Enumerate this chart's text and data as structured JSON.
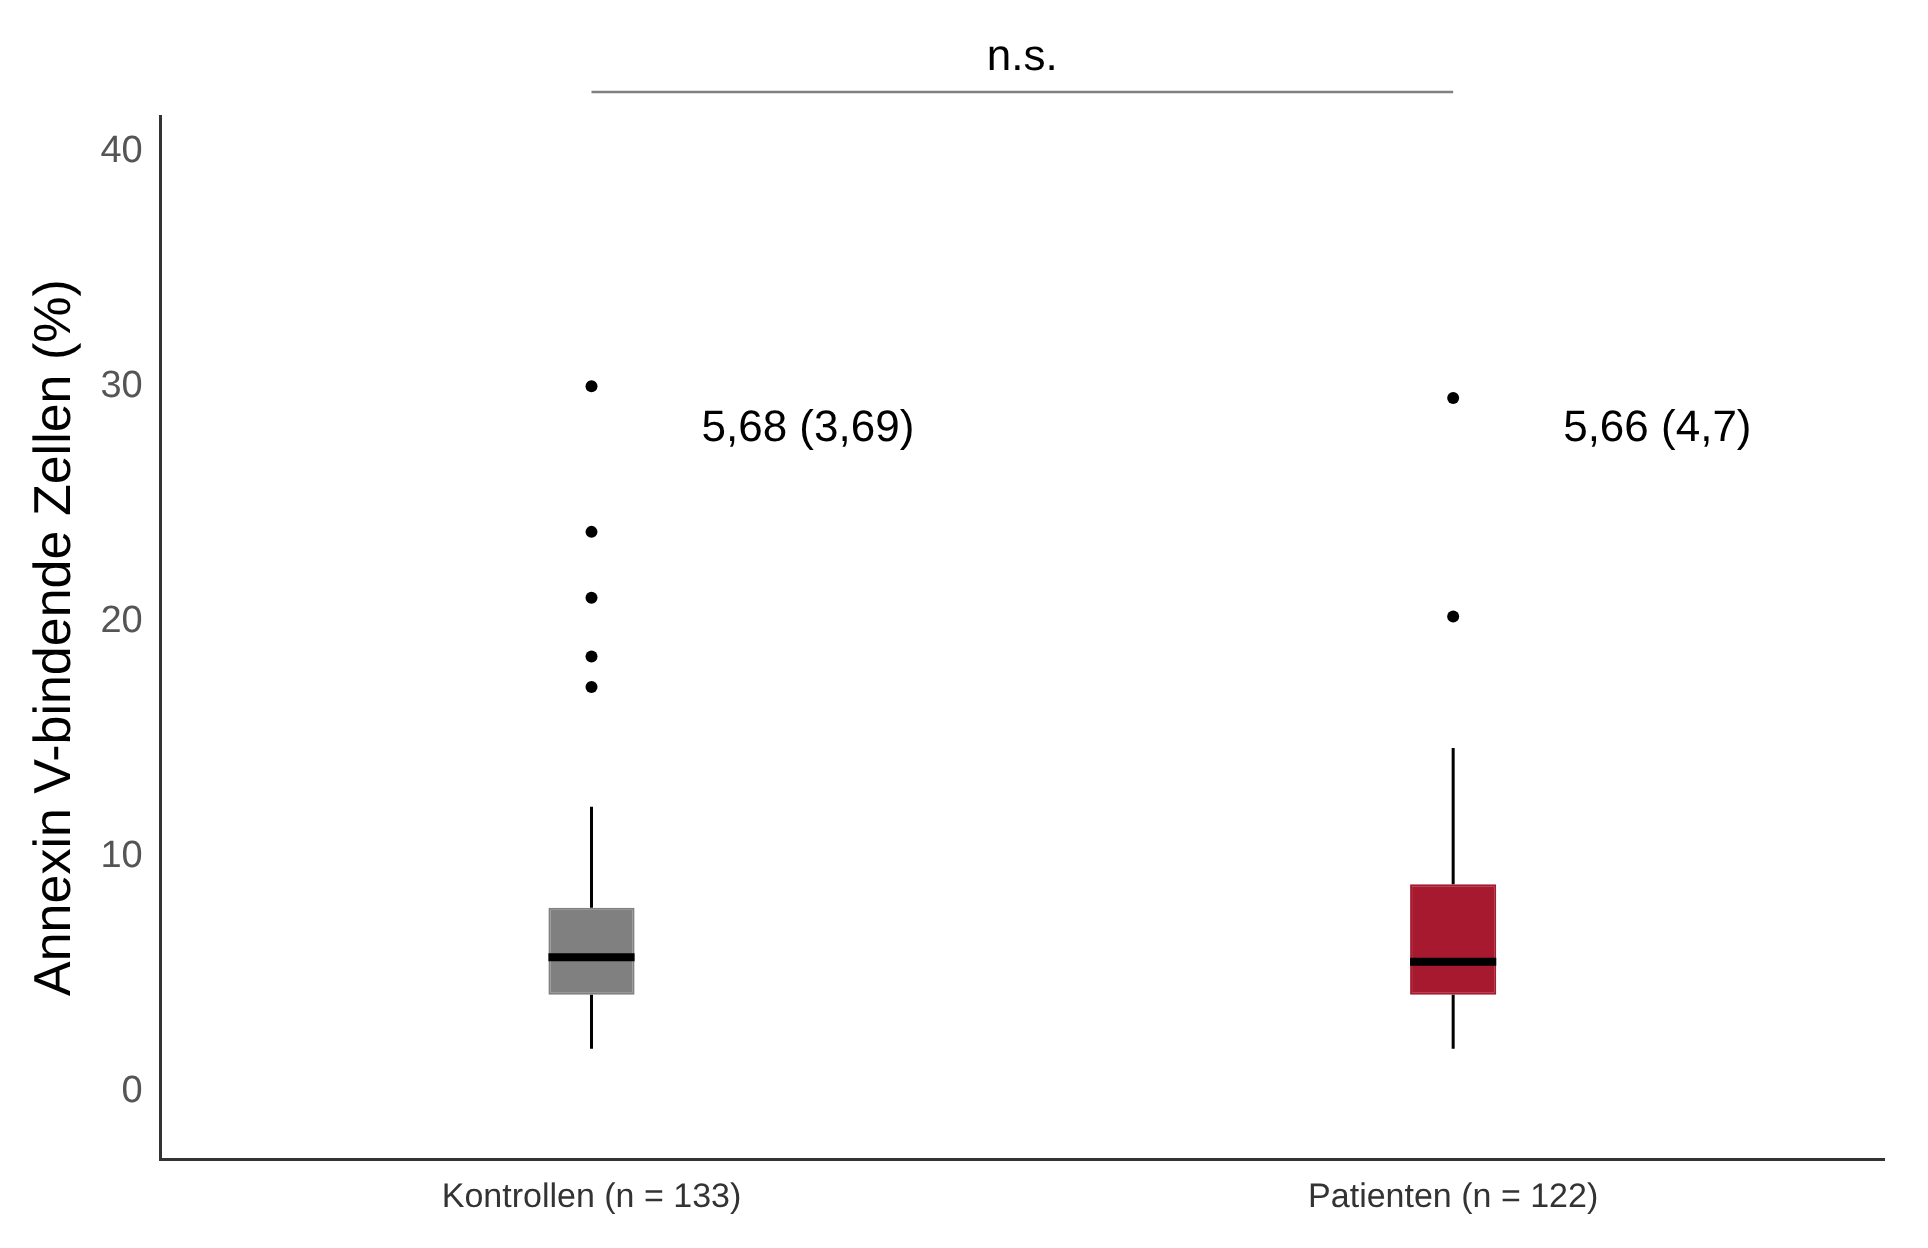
{
  "chart_data": {
    "type": "box",
    "ylabel": "Annexin V-bindende Zellen (%)",
    "categories": [
      "Kontrollen (n = 133)",
      "Patienten (n = 122)"
    ],
    "boxes": [
      {
        "low": 1.8,
        "q1": 4.1,
        "median": 5.7,
        "q3": 7.8,
        "high": 12.1,
        "outliers": [
          30,
          23.8,
          21,
          18.5,
          17.2
        ]
      },
      {
        "low": 1.8,
        "q1": 4.1,
        "median": 5.5,
        "q3": 8.8,
        "high": 14.6,
        "outliers": [
          29.5,
          20.2
        ]
      }
    ],
    "colors": [
      "#808080",
      "#a6192e"
    ],
    "ylim": [
      -2.9,
      41.5
    ],
    "yticks": [
      0,
      10,
      20,
      30,
      40
    ],
    "grid": false,
    "legend": false,
    "annotations": [
      "5,68 (3,69)",
      "5,66 (4,7)",
      "n.s."
    ]
  }
}
